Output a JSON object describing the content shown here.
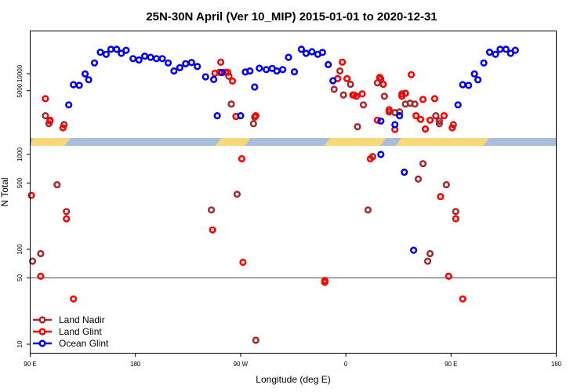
{
  "chart_data": {
    "type": "scatter",
    "title": "25N-30N April (Ver 10_MIP)   2015-01-01 to 2020-12-31",
    "xlabel": "Longitude (deg E)",
    "ylabel": "N Total",
    "x_ticks": [
      {
        "value": 90,
        "label": "90 E"
      },
      {
        "value": 180,
        "label": "180"
      },
      {
        "value": 270,
        "label": "90 W"
      },
      {
        "value": 360,
        "label": "0"
      },
      {
        "value": 450,
        "label": "90 E"
      },
      {
        "value": 540,
        "label": "180"
      }
    ],
    "xlim": [
      90,
      540
    ],
    "y_scale": "log",
    "lower_ticks": [
      {
        "value": 10,
        "label": "10"
      },
      {
        "value": 50,
        "label": "50"
      },
      {
        "value": 100,
        "label": "100"
      },
      {
        "value": 500,
        "label": "500"
      },
      {
        "value": 1000,
        "label": "1000"
      }
    ],
    "upper_ticks": [
      {
        "value": 5000,
        "label": "5000"
      },
      {
        "value": 10000,
        "label": "10000"
      }
    ],
    "reference_line": 50,
    "legend_position": "bottom-left",
    "colors": {
      "land_nadir": "#a52a2a",
      "land_glint": "#ff0000",
      "ocean_glint": "#0000ee",
      "band_ocean": "#a8bedc",
      "band_land": "#f7d87a"
    },
    "band_land_segments": [
      [
        90,
        122
      ],
      [
        251,
        276
      ],
      [
        344,
        392
      ],
      [
        405,
        480
      ]
    ],
    "series": [
      {
        "name": "Land Nadir",
        "key": "land_nadir",
        "points": [
          {
            "x": 92,
            "y": 75
          },
          {
            "x": 99,
            "y": 90
          },
          {
            "x": 103,
            "y": 1800
          },
          {
            "x": 106,
            "y": 1300
          },
          {
            "x": 107,
            "y": 1450
          },
          {
            "x": 113,
            "y": 480
          },
          {
            "x": 119,
            "y": 1250
          },
          {
            "x": 121,
            "y": 250
          },
          {
            "x": 245,
            "y": 260
          },
          {
            "x": 257,
            "y": 10600
          },
          {
            "x": 260,
            "y": 9000
          },
          {
            "x": 262,
            "y": 2900
          },
          {
            "x": 267,
            "y": 380
          },
          {
            "x": 281,
            "y": 1300
          },
          {
            "x": 282,
            "y": 1700
          },
          {
            "x": 283,
            "y": 11
          },
          {
            "x": 350,
            "y": 5300
          },
          {
            "x": 355,
            "y": 11200
          },
          {
            "x": 358,
            "y": 4200
          },
          {
            "x": 364,
            "y": 6500
          },
          {
            "x": 367,
            "y": 4200
          },
          {
            "x": 370,
            "y": 1150
          },
          {
            "x": 375,
            "y": 2800
          },
          {
            "x": 379,
            "y": 260
          },
          {
            "x": 383,
            "y": 950
          },
          {
            "x": 387,
            "y": 6900
          },
          {
            "x": 390,
            "y": 8000
          },
          {
            "x": 393,
            "y": 4000
          },
          {
            "x": 397,
            "y": 2100
          },
          {
            "x": 402,
            "y": 2050
          },
          {
            "x": 406,
            "y": 2100
          },
          {
            "x": 408,
            "y": 4400
          },
          {
            "x": 411,
            "y": 2900
          },
          {
            "x": 415,
            "y": 3000
          },
          {
            "x": 419,
            "y": 2900
          },
          {
            "x": 422,
            "y": 550
          },
          {
            "x": 426,
            "y": 800
          },
          {
            "x": 430,
            "y": 75
          },
          {
            "x": 432,
            "y": 90
          },
          {
            "x": 437,
            "y": 1800
          },
          {
            "x": 440,
            "y": 1300
          },
          {
            "x": 440,
            "y": 1450
          },
          {
            "x": 446,
            "y": 480
          },
          {
            "x": 452,
            "y": 1250
          },
          {
            "x": 454,
            "y": 250
          }
        ]
      },
      {
        "name": "Land Glint",
        "key": "land_glint",
        "points": [
          {
            "x": 91,
            "y": 370
          },
          {
            "x": 99,
            "y": 52
          },
          {
            "x": 103,
            "y": 3600
          },
          {
            "x": 107,
            "y": 1500
          },
          {
            "x": 118,
            "y": 1100
          },
          {
            "x": 121,
            "y": 210
          },
          {
            "x": 127,
            "y": 30
          },
          {
            "x": 246,
            "y": 160
          },
          {
            "x": 248,
            "y": 10200
          },
          {
            "x": 252,
            "y": 10600
          },
          {
            "x": 253,
            "y": 16000
          },
          {
            "x": 259,
            "y": 10600
          },
          {
            "x": 263,
            "y": 7400
          },
          {
            "x": 266,
            "y": 1750
          },
          {
            "x": 271,
            "y": 900
          },
          {
            "x": 272,
            "y": 73
          },
          {
            "x": 283,
            "y": 1800
          },
          {
            "x": 342,
            "y": 45
          },
          {
            "x": 342,
            "y": 47
          },
          {
            "x": 353,
            "y": 8200
          },
          {
            "x": 357,
            "y": 16000
          },
          {
            "x": 361,
            "y": 8200
          },
          {
            "x": 366,
            "y": 4200
          },
          {
            "x": 369,
            "y": 4000
          },
          {
            "x": 374,
            "y": 4400
          },
          {
            "x": 381,
            "y": 900
          },
          {
            "x": 387,
            "y": 1500
          },
          {
            "x": 389,
            "y": 8600
          },
          {
            "x": 392,
            "y": 6500
          },
          {
            "x": 397,
            "y": 2300
          },
          {
            "x": 402,
            "y": 1030
          },
          {
            "x": 408,
            "y": 4000
          },
          {
            "x": 411,
            "y": 4500
          },
          {
            "x": 416,
            "y": 9600
          },
          {
            "x": 420,
            "y": 1800
          },
          {
            "x": 424,
            "y": 1550
          },
          {
            "x": 426,
            "y": 3500
          },
          {
            "x": 428,
            "y": 1050
          },
          {
            "x": 432,
            "y": 1500
          },
          {
            "x": 436,
            "y": 3600
          },
          {
            "x": 441,
            "y": 360
          },
          {
            "x": 444,
            "y": 1800
          },
          {
            "x": 448,
            "y": 52
          },
          {
            "x": 451,
            "y": 1100
          },
          {
            "x": 454,
            "y": 210
          },
          {
            "x": 460,
            "y": 30
          }
        ]
      },
      {
        "name": "Ocean Glint",
        "key": "ocean_glint",
        "points": [
          {
            "x": 123,
            "y": 2800
          },
          {
            "x": 127,
            "y": 6400
          },
          {
            "x": 132,
            "y": 6200
          },
          {
            "x": 137,
            "y": 9900
          },
          {
            "x": 140,
            "y": 7800
          },
          {
            "x": 145,
            "y": 15500
          },
          {
            "x": 150,
            "y": 24000
          },
          {
            "x": 155,
            "y": 22000
          },
          {
            "x": 159,
            "y": 27000
          },
          {
            "x": 164,
            "y": 27000
          },
          {
            "x": 168,
            "y": 23000
          },
          {
            "x": 172,
            "y": 26000
          },
          {
            "x": 178,
            "y": 18500
          },
          {
            "x": 183,
            "y": 17500
          },
          {
            "x": 188,
            "y": 20500
          },
          {
            "x": 193,
            "y": 19500
          },
          {
            "x": 198,
            "y": 18500
          },
          {
            "x": 203,
            "y": 18500
          },
          {
            "x": 208,
            "y": 15500
          },
          {
            "x": 213,
            "y": 11200
          },
          {
            "x": 218,
            "y": 12800
          },
          {
            "x": 223,
            "y": 15000
          },
          {
            "x": 228,
            "y": 15800
          },
          {
            "x": 233,
            "y": 13400
          },
          {
            "x": 240,
            "y": 8800
          },
          {
            "x": 247,
            "y": 7900
          },
          {
            "x": 250,
            "y": 1800
          },
          {
            "x": 254,
            "y": 10500
          },
          {
            "x": 270,
            "y": 1800
          },
          {
            "x": 274,
            "y": 10700
          },
          {
            "x": 278,
            "y": 11200
          },
          {
            "x": 282,
            "y": 5800
          },
          {
            "x": 286,
            "y": 12500
          },
          {
            "x": 292,
            "y": 11800
          },
          {
            "x": 297,
            "y": 12400
          },
          {
            "x": 301,
            "y": 11200
          },
          {
            "x": 306,
            "y": 11800
          },
          {
            "x": 311,
            "y": 19500
          },
          {
            "x": 316,
            "y": 10800
          },
          {
            "x": 322,
            "y": 27000
          },
          {
            "x": 326,
            "y": 23000
          },
          {
            "x": 331,
            "y": 24500
          },
          {
            "x": 336,
            "y": 22000
          },
          {
            "x": 340,
            "y": 23800
          },
          {
            "x": 345,
            "y": 14500
          },
          {
            "x": 349,
            "y": 7500
          },
          {
            "x": 390,
            "y": 1450
          },
          {
            "x": 390,
            "y": 1000
          },
          {
            "x": 402,
            "y": 1250
          },
          {
            "x": 406,
            "y": 1800
          },
          {
            "x": 410,
            "y": 650
          },
          {
            "x": 418,
            "y": 98
          },
          {
            "x": 456,
            "y": 2800
          },
          {
            "x": 460,
            "y": 6400
          },
          {
            "x": 465,
            "y": 6200
          },
          {
            "x": 470,
            "y": 9900
          },
          {
            "x": 473,
            "y": 7800
          },
          {
            "x": 478,
            "y": 15500
          },
          {
            "x": 483,
            "y": 24000
          },
          {
            "x": 488,
            "y": 22000
          },
          {
            "x": 492,
            "y": 27000
          },
          {
            "x": 497,
            "y": 27000
          },
          {
            "x": 501,
            "y": 23000
          },
          {
            "x": 505,
            "y": 26000
          }
        ]
      }
    ]
  }
}
